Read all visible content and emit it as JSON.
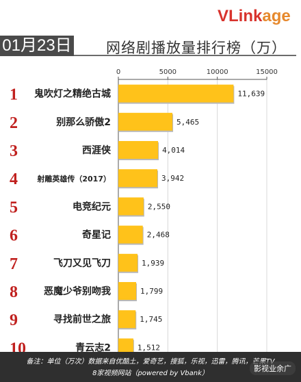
{
  "header": {
    "date": "01月23日",
    "title": "网络剧播放量排行榜（万）",
    "logo_v": "VLink",
    "logo_rest": "age"
  },
  "chart_data": {
    "type": "bar",
    "orientation": "horizontal",
    "categories": [
      "鬼吹灯之精绝古城",
      "别那么骄傲2",
      "西涯侠",
      "射雕英雄传（2017）",
      "电竞纪元",
      "奇星记",
      "飞刀又见飞刀",
      "恶魔少爷别吻我",
      "寻找前世之旅",
      "青云志2"
    ],
    "ranks": [
      "1",
      "2",
      "3",
      "4",
      "5",
      "6",
      "7",
      "8",
      "9",
      "10"
    ],
    "values": [
      11639,
      5465,
      4014,
      3942,
      2550,
      2468,
      1939,
      1799,
      1745,
      1512
    ],
    "value_labels": [
      "11,639",
      "5,465",
      "4,014",
      "3,942",
      "2,550",
      "2,468",
      "1,939",
      "1,799",
      "1,745",
      "1,512"
    ],
    "xlim": [
      0,
      15000
    ],
    "x_ticks": [
      "0",
      "5000",
      "10000",
      "15000"
    ],
    "x_tick_values": [
      0,
      5000,
      10000,
      15000
    ],
    "grid": true,
    "axis_position": "top",
    "bar_color": "#ffc21a",
    "rank_color": "#c0201e"
  },
  "footer": {
    "line1": "备注：单位（万次）数据来自优酷土，爱奇艺，搜狐，乐视，迅雷，腾讯，芒果TV",
    "line2": "8家视频网站（powered by Vbank）",
    "watermark": "影视业余广"
  }
}
